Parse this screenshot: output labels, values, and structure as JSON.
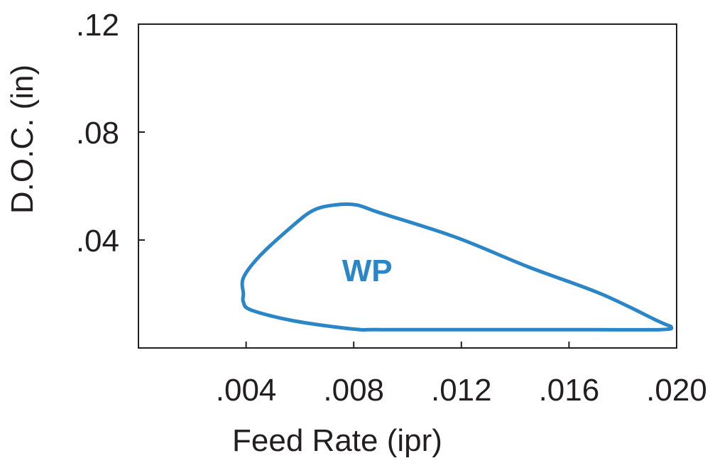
{
  "chart_data": {
    "type": "area",
    "xlabel": "Feed Rate (ipr)",
    "ylabel": "D.O.C. (in)",
    "xlim": [
      0.0,
      0.02
    ],
    "ylim": [
      0.0,
      0.12
    ],
    "x_ticks": [
      {
        "value": 0.004,
        "label": ".004"
      },
      {
        "value": 0.008,
        "label": ".008"
      },
      {
        "value": 0.012,
        "label": ".012"
      },
      {
        "value": 0.016,
        "label": ".016"
      },
      {
        "value": 0.02,
        "label": ".020"
      }
    ],
    "y_ticks": [
      {
        "value": 0.04,
        "label": ".04"
      },
      {
        "value": 0.08,
        "label": ".08"
      },
      {
        "value": 0.12,
        "label": ".12"
      }
    ],
    "regions": [
      {
        "name": "WP",
        "label_at": {
          "x": 0.0085,
          "y": 0.029
        },
        "color": "#2b86c8",
        "boundary": [
          [
            0.0039,
            0.02
          ],
          [
            0.0039,
            0.026
          ],
          [
            0.0045,
            0.034
          ],
          [
            0.0057,
            0.045
          ],
          [
            0.0065,
            0.051
          ],
          [
            0.0073,
            0.053
          ],
          [
            0.0081,
            0.053
          ],
          [
            0.009,
            0.05
          ],
          [
            0.0118,
            0.041
          ],
          [
            0.0145,
            0.03
          ],
          [
            0.0172,
            0.02
          ],
          [
            0.0193,
            0.01
          ],
          [
            0.0198,
            0.0077
          ],
          [
            0.0194,
            0.0068
          ],
          [
            0.017,
            0.0068
          ],
          [
            0.013,
            0.0068
          ],
          [
            0.009,
            0.0068
          ],
          [
            0.008,
            0.007
          ],
          [
            0.0058,
            0.01
          ],
          [
            0.0042,
            0.014
          ],
          [
            0.0039,
            0.017
          ]
        ]
      }
    ]
  }
}
